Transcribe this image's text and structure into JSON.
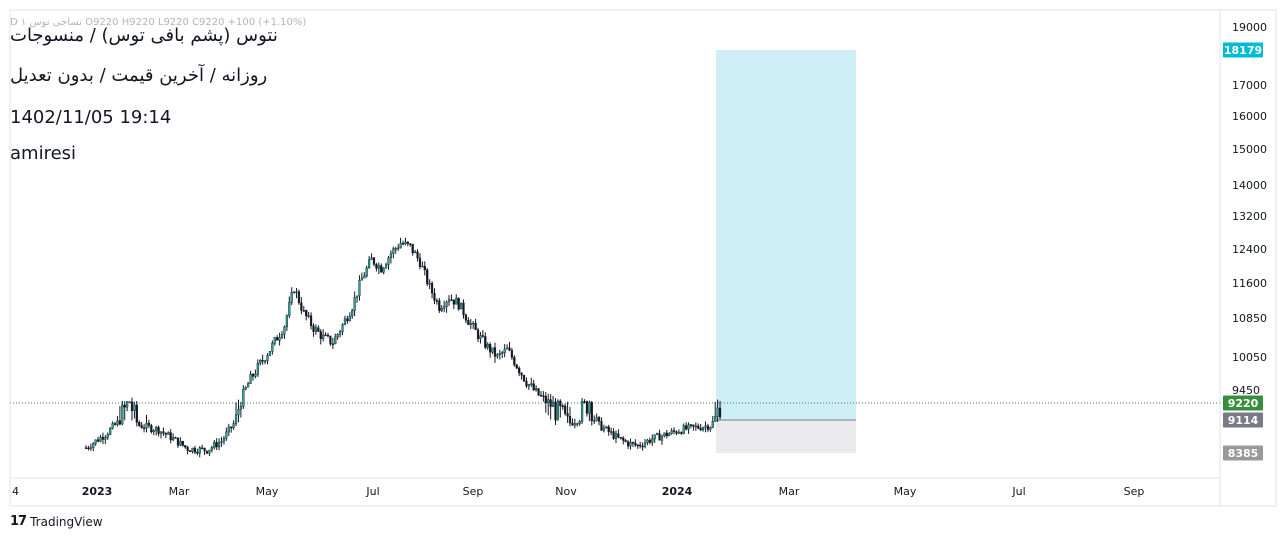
{
  "header": {
    "ohlc_text": "D ۱ نساجی نوس  O9220  H9220  L9220  C9220  +100 (+1.10%)",
    "title": "نتوس (پشم بافی توس) / منسوجات",
    "subtitle": "روزانه / آخرین قیمت / بدون تعدیل",
    "datetime": "1402/11/05 19:14",
    "author": "amiresi"
  },
  "footer": {
    "brand_mark": "17",
    "brand_name": "TradingView"
  },
  "colors": {
    "up": "#26a69a",
    "down": "#131722",
    "candle_stroke": "#131722",
    "profit_zone": "#cdeff5",
    "loss_zone": "#ebebed",
    "target_badge": "#00bcd4",
    "last_price_badge": "#388e3c",
    "entry_badge": "#787b86",
    "stop_badge": "#999999",
    "last_price_line": "#388e3c"
  },
  "chart_data": {
    "type": "candlestick",
    "timeframe": "daily",
    "y_axis": {
      "position": "right",
      "ticks": [
        8385,
        9450,
        10050,
        10850,
        11600,
        12400,
        13200,
        14000,
        15000,
        16000,
        17000,
        19000
      ],
      "ylim": [
        8300,
        19300
      ]
    },
    "x_axis": {
      "tick_labels": [
        "4",
        "2023",
        "Mar",
        "May",
        "Jul",
        "Sep",
        "Nov",
        "2024",
        "Mar",
        "May",
        "Jul",
        "Sep"
      ],
      "bold_labels": [
        "2023",
        "2024"
      ]
    },
    "price_path": [
      [
        0,
        8500
      ],
      [
        8,
        8800
      ],
      [
        14,
        9100
      ],
      [
        18,
        9250
      ],
      [
        22,
        9000
      ],
      [
        30,
        8900
      ],
      [
        36,
        8700
      ],
      [
        42,
        8480
      ],
      [
        50,
        8450
      ],
      [
        56,
        8650
      ],
      [
        62,
        9100
      ],
      [
        68,
        9650
      ],
      [
        76,
        10200
      ],
      [
        82,
        10700
      ],
      [
        86,
        11500
      ],
      [
        90,
        10950
      ],
      [
        94,
        10650
      ],
      [
        98,
        10450
      ],
      [
        102,
        10350
      ],
      [
        106,
        10700
      ],
      [
        110,
        11100
      ],
      [
        114,
        11700
      ],
      [
        118,
        12150
      ],
      [
        122,
        11950
      ],
      [
        126,
        12300
      ],
      [
        130,
        12550
      ],
      [
        134,
        12450
      ],
      [
        138,
        12100
      ],
      [
        142,
        11500
      ],
      [
        146,
        11100
      ],
      [
        150,
        11300
      ],
      [
        154,
        11150
      ],
      [
        158,
        10800
      ],
      [
        162,
        10500
      ],
      [
        166,
        10250
      ],
      [
        170,
        10050
      ],
      [
        174,
        10200
      ],
      [
        178,
        9900
      ],
      [
        182,
        9600
      ],
      [
        186,
        9400
      ],
      [
        190,
        9250
      ],
      [
        196,
        9150
      ],
      [
        200,
        9050
      ],
      [
        204,
        9150
      ],
      [
        208,
        9250
      ],
      [
        212,
        9000
      ],
      [
        216,
        8850
      ],
      [
        220,
        8700
      ],
      [
        224,
        8600
      ],
      [
        228,
        8550
      ],
      [
        234,
        8700
      ],
      [
        240,
        8800
      ],
      [
        246,
        8900
      ],
      [
        252,
        8950
      ],
      [
        258,
        9000
      ],
      [
        262,
        9220
      ]
    ],
    "last_price": 9220,
    "last_change": 100,
    "last_change_pct": 1.1,
    "position_tool": {
      "type": "long",
      "target": 18179,
      "entry": 9114,
      "stop": 8385
    },
    "price_labels": [
      {
        "value": 18179,
        "role": "target"
      },
      {
        "value": 9220,
        "role": "last"
      },
      {
        "value": 9114,
        "role": "entry"
      },
      {
        "value": 8385,
        "role": "stop"
      }
    ]
  }
}
